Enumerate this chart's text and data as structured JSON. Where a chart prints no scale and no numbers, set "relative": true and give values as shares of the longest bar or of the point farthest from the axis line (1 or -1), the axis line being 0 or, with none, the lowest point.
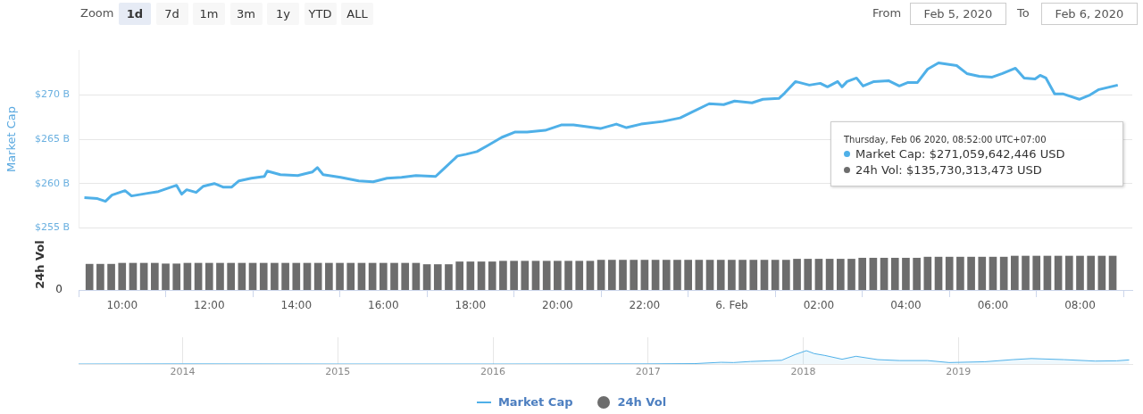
{
  "chart_data": [
    {
      "type": "line",
      "ylabel": "Market Cap",
      "xlim": [
        "2020-02-05T09:00",
        "2020-02-06T09:12"
      ],
      "ylim": [
        255,
        275
      ],
      "yticks": [
        {
          "value": 255,
          "label": "$255 B"
        },
        {
          "value": 260,
          "label": "$260 B"
        },
        {
          "value": 265,
          "label": "$265 B"
        },
        {
          "value": 270,
          "label": "$270 B"
        }
      ],
      "grid": "y",
      "tick_labels": "y",
      "legend": "bottom",
      "annotations": [
        "Zoom",
        "1d",
        "7d",
        "1m",
        "3m",
        "1y",
        "YTD",
        "ALL",
        "From",
        "Feb 5, 2020",
        "To",
        "Feb 6, 2020",
        "Thursday, Feb 06 2020, 08:52:00 UTC+07:00",
        "Market Cap: $271,059,642,446 USD",
        "24h Vol: $135,730,313,473 USD"
      ],
      "series": [
        {
          "name": "Market Cap",
          "color": "#4fb0e8",
          "x": [
            "2020-02-05T09:08",
            "2020-02-05T09:26",
            "2020-02-05T09:37",
            "2020-02-05T09:46",
            "2020-02-05T10:04",
            "2020-02-05T10:13",
            "2020-02-05T10:35",
            "2020-02-05T10:50",
            "2020-02-05T11:15",
            "2020-02-05T11:22",
            "2020-02-05T11:29",
            "2020-02-05T11:42",
            "2020-02-05T11:52",
            "2020-02-05T12:07",
            "2020-02-05T12:19",
            "2020-02-05T12:31",
            "2020-02-05T12:41",
            "2020-02-05T12:58",
            "2020-02-05T13:16",
            "2020-02-05T13:20",
            "2020-02-05T13:38",
            "2020-02-05T14:02",
            "2020-02-05T14:22",
            "2020-02-05T14:29",
            "2020-02-05T14:37",
            "2020-02-05T15:01",
            "2020-02-05T15:26",
            "2020-02-05T15:46",
            "2020-02-05T16:05",
            "2020-02-05T16:25",
            "2020-02-05T16:45",
            "2020-02-05T17:12",
            "2020-02-05T17:25",
            "2020-02-05T17:42",
            "2020-02-05T17:54",
            "2020-02-05T18:09",
            "2020-02-05T18:24",
            "2020-02-05T18:43",
            "2020-02-05T19:01",
            "2020-02-05T19:18",
            "2020-02-05T19:43",
            "2020-02-05T20:05",
            "2020-02-05T20:22",
            "2020-02-05T20:59",
            "2020-02-05T21:21",
            "2020-02-05T21:35",
            "2020-02-05T21:55",
            "2020-02-05T22:25",
            "2020-02-05T22:49",
            "2020-02-05T23:04",
            "2020-02-05T23:29",
            "2020-02-05T23:49",
            "2020-02-06T00:04",
            "2020-02-06T00:28",
            "2020-02-06T00:43",
            "2020-02-06T01:05",
            "2020-02-06T01:13",
            "2020-02-06T01:28",
            "2020-02-06T01:47",
            "2020-02-06T02:02",
            "2020-02-06T02:12",
            "2020-02-06T02:26",
            "2020-02-06T02:32",
            "2020-02-06T02:39",
            "2020-02-06T02:52",
            "2020-02-06T03:01",
            "2020-02-06T03:16",
            "2020-02-06T03:36",
            "2020-02-06T03:51",
            "2020-02-06T04:03",
            "2020-02-06T04:16",
            "2020-02-06T04:30",
            "2020-02-06T04:45",
            "2020-02-06T05:10",
            "2020-02-06T05:24",
            "2020-02-06T05:41",
            "2020-02-06T05:59",
            "2020-02-06T06:13",
            "2020-02-06T06:31",
            "2020-02-06T06:43",
            "2020-02-06T06:58",
            "2020-02-06T07:05",
            "2020-02-06T07:13",
            "2020-02-06T07:25",
            "2020-02-06T07:37",
            "2020-02-06T07:59",
            "2020-02-06T08:14",
            "2020-02-06T08:26",
            "2020-02-06T08:52"
          ],
          "values": [
            258.4,
            258.3,
            258.0,
            258.7,
            259.2,
            258.6,
            258.9,
            259.1,
            259.8,
            258.8,
            259.3,
            259.0,
            259.7,
            260.0,
            259.6,
            259.6,
            260.3,
            260.6,
            260.8,
            261.4,
            261.0,
            260.9,
            261.3,
            261.8,
            261.0,
            260.7,
            260.3,
            260.2,
            260.6,
            260.7,
            260.9,
            260.8,
            261.8,
            263.1,
            263.3,
            263.6,
            264.3,
            265.2,
            265.8,
            265.8,
            266.0,
            266.6,
            266.6,
            266.2,
            266.7,
            266.3,
            266.7,
            267.0,
            267.4,
            268.0,
            269.0,
            268.9,
            269.3,
            269.1,
            269.5,
            269.6,
            270.2,
            271.5,
            271.1,
            271.3,
            270.9,
            271.5,
            270.9,
            271.5,
            271.9,
            271.0,
            271.5,
            271.6,
            271.0,
            271.4,
            271.4,
            272.9,
            273.6,
            273.3,
            272.4,
            272.1,
            272.0,
            272.4,
            273.0,
            271.9,
            271.8,
            272.2,
            271.9,
            270.1,
            270.1,
            269.5,
            270.0,
            270.6,
            271.1
          ]
        }
      ]
    },
    {
      "type": "bar",
      "ylabel": "24h Vol",
      "relative": true,
      "xlim": [
        "2020-02-05T09:00",
        "2020-02-06T09:12"
      ],
      "xticks": [
        {
          "value": "2020-02-05T10:00",
          "label": "10:00"
        },
        {
          "value": "2020-02-05T12:00",
          "label": "12:00"
        },
        {
          "value": "2020-02-05T14:00",
          "label": "14:00"
        },
        {
          "value": "2020-02-05T16:00",
          "label": "16:00"
        },
        {
          "value": "2020-02-05T18:00",
          "label": "18:00"
        },
        {
          "value": "2020-02-05T20:00",
          "label": "20:00"
        },
        {
          "value": "2020-02-05T22:00",
          "label": "22:00"
        },
        {
          "value": "2020-02-06T00:00",
          "label": "6. Feb"
        },
        {
          "value": "2020-02-06T02:00",
          "label": "02:00"
        },
        {
          "value": "2020-02-06T04:00",
          "label": "04:00"
        },
        {
          "value": "2020-02-06T06:00",
          "label": "06:00"
        },
        {
          "value": "2020-02-06T08:00",
          "label": "08:00"
        }
      ],
      "tick_labels": "x",
      "legend": "bottom",
      "annotations": [
        "0"
      ],
      "series": [
        {
          "name": "24h Vol",
          "color": "#6d6d6d",
          "x": [
            "2020-02-05T09:15",
            "2020-02-05T09:30",
            "2020-02-05T09:45",
            "2020-02-05T10:00",
            "2020-02-05T10:15",
            "2020-02-05T10:30",
            "2020-02-05T10:45",
            "2020-02-05T11:00",
            "2020-02-05T11:15",
            "2020-02-05T11:30",
            "2020-02-05T11:45",
            "2020-02-05T12:00",
            "2020-02-05T12:15",
            "2020-02-05T12:30",
            "2020-02-05T12:45",
            "2020-02-05T13:00",
            "2020-02-05T13:15",
            "2020-02-05T13:30",
            "2020-02-05T13:45",
            "2020-02-05T14:00",
            "2020-02-05T14:15",
            "2020-02-05T14:30",
            "2020-02-05T14:45",
            "2020-02-05T15:00",
            "2020-02-05T15:15",
            "2020-02-05T15:30",
            "2020-02-05T15:45",
            "2020-02-05T16:00",
            "2020-02-05T16:15",
            "2020-02-05T16:30",
            "2020-02-05T16:45",
            "2020-02-05T17:00",
            "2020-02-05T17:15",
            "2020-02-05T17:30",
            "2020-02-05T17:45",
            "2020-02-05T18:00",
            "2020-02-05T18:15",
            "2020-02-05T18:30",
            "2020-02-05T18:45",
            "2020-02-05T19:00",
            "2020-02-05T19:15",
            "2020-02-05T19:30",
            "2020-02-05T19:45",
            "2020-02-05T20:00",
            "2020-02-05T20:15",
            "2020-02-05T20:30",
            "2020-02-05T20:45",
            "2020-02-05T21:00",
            "2020-02-05T21:15",
            "2020-02-05T21:30",
            "2020-02-05T21:45",
            "2020-02-05T22:00",
            "2020-02-05T22:15",
            "2020-02-05T22:30",
            "2020-02-05T22:45",
            "2020-02-05T23:00",
            "2020-02-05T23:15",
            "2020-02-05T23:30",
            "2020-02-05T23:45",
            "2020-02-06T00:00",
            "2020-02-06T00:15",
            "2020-02-06T00:30",
            "2020-02-06T00:45",
            "2020-02-06T01:00",
            "2020-02-06T01:15",
            "2020-02-06T01:30",
            "2020-02-06T01:45",
            "2020-02-06T02:00",
            "2020-02-06T02:15",
            "2020-02-06T02:30",
            "2020-02-06T02:45",
            "2020-02-06T03:00",
            "2020-02-06T03:15",
            "2020-02-06T03:30",
            "2020-02-06T03:45",
            "2020-02-06T04:00",
            "2020-02-06T04:15",
            "2020-02-06T04:30",
            "2020-02-06T04:45",
            "2020-02-06T05:00",
            "2020-02-06T05:15",
            "2020-02-06T05:30",
            "2020-02-06T05:45",
            "2020-02-06T06:00",
            "2020-02-06T06:15",
            "2020-02-06T06:30",
            "2020-02-06T06:45",
            "2020-02-06T07:00",
            "2020-02-06T07:15",
            "2020-02-06T07:30",
            "2020-02-06T07:45",
            "2020-02-06T08:00",
            "2020-02-06T08:15",
            "2020-02-06T08:30",
            "2020-02-06T08:45"
          ],
          "values": [
            0.76,
            0.76,
            0.76,
            0.79,
            0.79,
            0.79,
            0.79,
            0.77,
            0.77,
            0.79,
            0.79,
            0.79,
            0.79,
            0.79,
            0.79,
            0.79,
            0.79,
            0.79,
            0.79,
            0.79,
            0.79,
            0.79,
            0.79,
            0.79,
            0.79,
            0.79,
            0.79,
            0.79,
            0.79,
            0.79,
            0.79,
            0.75,
            0.75,
            0.75,
            0.83,
            0.83,
            0.83,
            0.83,
            0.85,
            0.85,
            0.85,
            0.85,
            0.85,
            0.85,
            0.85,
            0.85,
            0.85,
            0.88,
            0.88,
            0.88,
            0.88,
            0.88,
            0.88,
            0.88,
            0.88,
            0.88,
            0.88,
            0.88,
            0.88,
            0.88,
            0.88,
            0.88,
            0.88,
            0.88,
            0.88,
            0.91,
            0.91,
            0.91,
            0.91,
            0.91,
            0.91,
            0.94,
            0.94,
            0.94,
            0.94,
            0.94,
            0.94,
            0.97,
            0.97,
            0.97,
            0.97,
            0.97,
            0.97,
            0.97,
            0.97,
            1.0,
            1.0,
            1.0,
            1.0,
            1.0,
            1.0,
            1.0,
            1.0,
            1.0,
            1.0
          ]
        }
      ]
    },
    {
      "type": "area",
      "relative": true,
      "xlim": [
        2013.33,
        2020.12
      ],
      "xticks": [
        2014,
        2015,
        2016,
        2017,
        2018,
        2019
      ],
      "grid": "x",
      "tick_labels": "x",
      "series": [
        {
          "color": "#4fb0e8",
          "x": [
            2013.33,
            2014.0,
            2015.0,
            2016.0,
            2017.0,
            2017.3,
            2017.47,
            2017.55,
            2017.66,
            2017.86,
            2017.95,
            2018.02,
            2018.07,
            2018.14,
            2018.25,
            2018.34,
            2018.48,
            2018.62,
            2018.8,
            2018.94,
            2019.17,
            2019.35,
            2019.47,
            2019.68,
            2019.88,
            2020.02,
            2020.1
          ],
          "values": [
            0.0,
            0.01,
            0.0,
            0.0,
            0.01,
            0.03,
            0.13,
            0.11,
            0.19,
            0.28,
            0.72,
            1.0,
            0.78,
            0.64,
            0.36,
            0.58,
            0.33,
            0.26,
            0.26,
            0.11,
            0.17,
            0.33,
            0.41,
            0.33,
            0.22,
            0.24,
            0.31
          ]
        }
      ]
    }
  ]
}
